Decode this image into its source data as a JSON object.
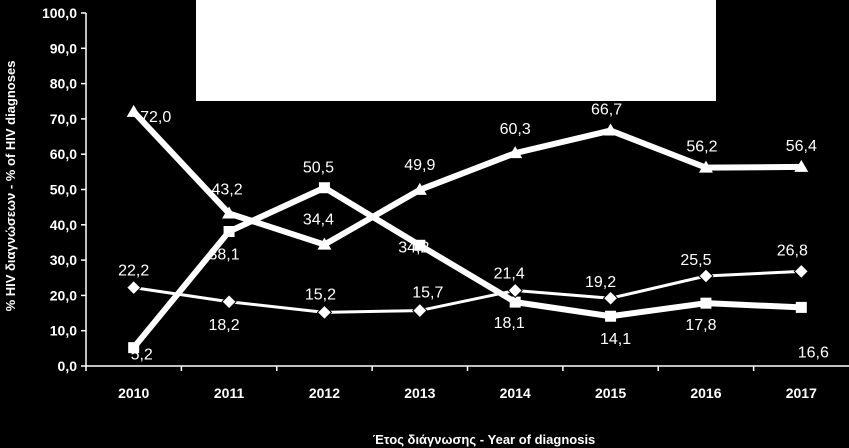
{
  "chart_data": {
    "type": "line",
    "x": [
      "2010",
      "2011",
      "2012",
      "2013",
      "2014",
      "2015",
      "2016",
      "2017"
    ],
    "ylim": [
      0,
      100
    ],
    "yticks": [
      "0,0",
      "10,0",
      "20,0",
      "30,0",
      "40,0",
      "50,0",
      "60,0",
      "70,0",
      "80,0",
      "90,0",
      "100,0"
    ],
    "ylabel": "% HIV διαγνώσεων - % of HIV diagnoses",
    "xlabel": "Έτος διάγνωσης - Year of diagnosis",
    "grid": false,
    "series": [
      {
        "marker": "triangle",
        "values": [
          72.0,
          43.2,
          34.4,
          49.9,
          60.3,
          66.7,
          56.2,
          56.4
        ],
        "labels": [
          "72,0",
          "43,2",
          "34,4",
          "49,9",
          "60,3",
          "66,7",
          "56,2",
          "56,4"
        ]
      },
      {
        "marker": "square",
        "values": [
          5.2,
          38.1,
          50.5,
          34.2,
          18.1,
          14.1,
          17.8,
          16.6
        ],
        "labels": [
          "5,2",
          "38,1",
          "50,5",
          "34,2",
          "18,1",
          "14,1",
          "17,8",
          "16,6"
        ]
      },
      {
        "marker": "diamond",
        "values": [
          22.2,
          18.2,
          15.2,
          15.7,
          21.4,
          19.2,
          25.5,
          26.8
        ],
        "labels": [
          "22,2",
          "18,2",
          "15,2",
          "15,7",
          "21,4",
          "19,2",
          "25,5",
          "26,8"
        ]
      }
    ],
    "colors": {
      "background": "#000000",
      "lines": "#ffffff",
      "legend_box": "#ffffff"
    }
  }
}
